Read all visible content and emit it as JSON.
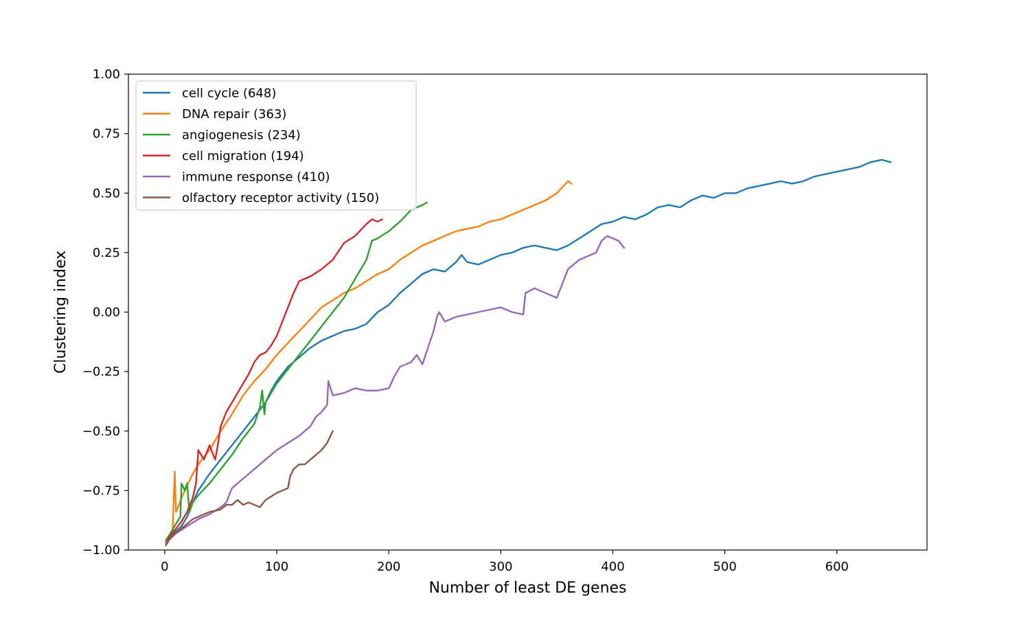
{
  "chart_data": {
    "type": "line",
    "xlabel": "Number of least DE genes",
    "ylabel": "Clustering index",
    "xlim": [
      -32.4,
      680.4
    ],
    "ylim": [
      -1.0,
      1.0
    ],
    "xticks": [
      0,
      100,
      200,
      300,
      400,
      500,
      600
    ],
    "xtick_labels": [
      "0",
      "100",
      "200",
      "300",
      "400",
      "500",
      "600"
    ],
    "yticks": [
      -1.0,
      -0.75,
      -0.5,
      -0.25,
      0.0,
      0.25,
      0.5,
      0.75,
      1.0
    ],
    "ytick_labels": [
      "−1.00",
      "−0.75",
      "−0.50",
      "−0.25",
      "0.00",
      "0.25",
      "0.50",
      "0.75",
      "1.00"
    ],
    "grid": false,
    "legend_position": "top-left",
    "series": [
      {
        "name": "cell cycle (648)",
        "color": "#1f77b4",
        "x": [
          1,
          5,
          10,
          15,
          20,
          25,
          30,
          40,
          50,
          60,
          70,
          80,
          90,
          95,
          100,
          110,
          120,
          130,
          140,
          150,
          160,
          170,
          180,
          190,
          200,
          210,
          220,
          230,
          240,
          250,
          260,
          265,
          270,
          280,
          290,
          300,
          310,
          320,
          330,
          340,
          350,
          360,
          370,
          380,
          390,
          400,
          410,
          420,
          430,
          440,
          450,
          460,
          470,
          480,
          490,
          500,
          510,
          520,
          530,
          540,
          550,
          560,
          570,
          580,
          590,
          600,
          610,
          620,
          630,
          640,
          648
        ],
        "y": [
          -0.97,
          -0.95,
          -0.92,
          -0.9,
          -0.86,
          -0.8,
          -0.75,
          -0.68,
          -0.62,
          -0.56,
          -0.5,
          -0.44,
          -0.38,
          -0.33,
          -0.29,
          -0.23,
          -0.19,
          -0.15,
          -0.12,
          -0.1,
          -0.08,
          -0.07,
          -0.05,
          0.0,
          0.03,
          0.08,
          0.12,
          0.16,
          0.18,
          0.17,
          0.21,
          0.24,
          0.21,
          0.2,
          0.22,
          0.24,
          0.25,
          0.27,
          0.28,
          0.27,
          0.26,
          0.28,
          0.31,
          0.34,
          0.37,
          0.38,
          0.4,
          0.39,
          0.41,
          0.44,
          0.45,
          0.44,
          0.47,
          0.49,
          0.48,
          0.5,
          0.5,
          0.52,
          0.53,
          0.54,
          0.55,
          0.54,
          0.55,
          0.57,
          0.58,
          0.59,
          0.6,
          0.61,
          0.63,
          0.64,
          0.63
        ]
      },
      {
        "name": "DNA repair (363)",
        "color": "#ff7f0e",
        "x": [
          1,
          4,
          7,
          9,
          10,
          12,
          15,
          20,
          25,
          30,
          40,
          50,
          60,
          70,
          80,
          90,
          100,
          110,
          120,
          130,
          140,
          150,
          160,
          170,
          180,
          190,
          200,
          210,
          220,
          230,
          240,
          250,
          260,
          270,
          280,
          290,
          300,
          310,
          320,
          330,
          340,
          350,
          360,
          363
        ],
        "y": [
          -0.98,
          -0.95,
          -0.92,
          -0.67,
          -0.84,
          -0.82,
          -0.78,
          -0.73,
          -0.68,
          -0.64,
          -0.58,
          -0.5,
          -0.43,
          -0.35,
          -0.29,
          -0.24,
          -0.18,
          -0.13,
          -0.08,
          -0.03,
          0.02,
          0.05,
          0.08,
          0.1,
          0.13,
          0.16,
          0.18,
          0.22,
          0.25,
          0.28,
          0.3,
          0.32,
          0.34,
          0.35,
          0.36,
          0.38,
          0.39,
          0.41,
          0.43,
          0.45,
          0.47,
          0.5,
          0.55,
          0.54
        ]
      },
      {
        "name": "angiogenesis (234)",
        "color": "#2ca02c",
        "x": [
          1,
          5,
          10,
          14,
          15,
          18,
          20,
          22,
          25,
          30,
          40,
          50,
          60,
          70,
          80,
          85,
          87,
          89,
          90,
          100,
          110,
          120,
          130,
          140,
          150,
          160,
          170,
          180,
          185,
          190,
          200,
          210,
          220,
          230,
          234
        ],
        "y": [
          -0.96,
          -0.93,
          -0.89,
          -0.86,
          -0.72,
          -0.75,
          -0.72,
          -0.84,
          -0.8,
          -0.77,
          -0.72,
          -0.66,
          -0.6,
          -0.53,
          -0.47,
          -0.4,
          -0.33,
          -0.43,
          -0.38,
          -0.3,
          -0.24,
          -0.18,
          -0.12,
          -0.06,
          0.0,
          0.06,
          0.14,
          0.22,
          0.3,
          0.31,
          0.34,
          0.38,
          0.43,
          0.45,
          0.46
        ]
      },
      {
        "name": "cell migration (194)",
        "color": "#d62728",
        "x": [
          1,
          5,
          10,
          15,
          20,
          25,
          28,
          30,
          35,
          40,
          45,
          47,
          50,
          55,
          60,
          65,
          70,
          75,
          80,
          85,
          90,
          95,
          100,
          105,
          110,
          115,
          120,
          125,
          130,
          140,
          150,
          160,
          170,
          180,
          185,
          190,
          194
        ],
        "y": [
          -0.97,
          -0.94,
          -0.91,
          -0.88,
          -0.84,
          -0.78,
          -0.72,
          -0.58,
          -0.62,
          -0.56,
          -0.62,
          -0.57,
          -0.48,
          -0.42,
          -0.38,
          -0.34,
          -0.3,
          -0.26,
          -0.21,
          -0.18,
          -0.17,
          -0.14,
          -0.1,
          -0.04,
          0.02,
          0.08,
          0.13,
          0.14,
          0.15,
          0.18,
          0.22,
          0.29,
          0.32,
          0.37,
          0.39,
          0.38,
          0.39
        ]
      },
      {
        "name": "immune response (410)",
        "color": "#9467bd",
        "x": [
          1,
          10,
          20,
          30,
          40,
          50,
          55,
          60,
          70,
          80,
          90,
          100,
          110,
          120,
          130,
          135,
          140,
          145,
          146,
          150,
          160,
          170,
          180,
          190,
          200,
          205,
          210,
          220,
          225,
          230,
          240,
          243,
          245,
          250,
          260,
          270,
          280,
          290,
          300,
          310,
          320,
          322,
          330,
          340,
          350,
          355,
          360,
          370,
          380,
          385,
          390,
          395,
          400,
          405,
          410
        ],
        "y": [
          -0.97,
          -0.93,
          -0.9,
          -0.87,
          -0.85,
          -0.82,
          -0.8,
          -0.74,
          -0.7,
          -0.66,
          -0.62,
          -0.58,
          -0.55,
          -0.52,
          -0.48,
          -0.44,
          -0.42,
          -0.39,
          -0.29,
          -0.35,
          -0.34,
          -0.32,
          -0.33,
          -0.33,
          -0.32,
          -0.27,
          -0.23,
          -0.21,
          -0.18,
          -0.22,
          -0.08,
          -0.02,
          0.0,
          -0.04,
          -0.02,
          -0.01,
          0.0,
          0.01,
          0.02,
          0.0,
          -0.01,
          0.08,
          0.1,
          0.08,
          0.06,
          0.12,
          0.18,
          0.22,
          0.24,
          0.25,
          0.3,
          0.32,
          0.31,
          0.3,
          0.27
        ]
      },
      {
        "name": "olfactory receptor activity (150)",
        "color": "#8c564b",
        "x": [
          1,
          5,
          10,
          15,
          20,
          25,
          30,
          40,
          50,
          55,
          60,
          65,
          70,
          75,
          80,
          85,
          90,
          100,
          110,
          112,
          115,
          120,
          125,
          130,
          135,
          140,
          145,
          150
        ],
        "y": [
          -0.98,
          -0.95,
          -0.93,
          -0.91,
          -0.89,
          -0.87,
          -0.86,
          -0.84,
          -0.83,
          -0.81,
          -0.81,
          -0.79,
          -0.81,
          -0.8,
          -0.81,
          -0.82,
          -0.79,
          -0.76,
          -0.74,
          -0.69,
          -0.66,
          -0.64,
          -0.64,
          -0.62,
          -0.6,
          -0.58,
          -0.55,
          -0.5
        ]
      }
    ]
  }
}
